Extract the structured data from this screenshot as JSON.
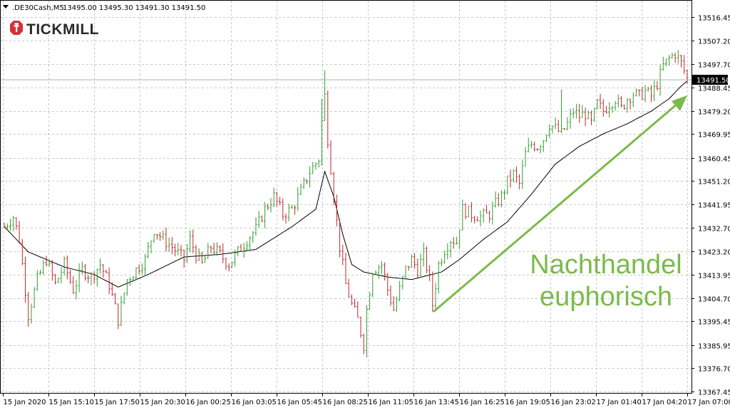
{
  "header": {
    "symbol": ".DE30Cash,M5",
    "ohlc": "13495.00 13495.30 13491.30 13491.50"
  },
  "logo": {
    "text": "TICKMILL"
  },
  "current_price": "13491.50",
  "annotation": {
    "line1": "Nachthandel",
    "line2": "euphorisch",
    "color": "#7cba4b"
  },
  "colors": {
    "bull": "#2f9e2f",
    "bear": "#c0282f",
    "ma": "#000000",
    "grid": "#c8c8c8"
  },
  "chart_data": {
    "type": "candlestick",
    "y_axis": {
      "ticks": [
        13516.45,
        13507.2,
        13497.7,
        13488.45,
        13479.2,
        13469.95,
        13460.45,
        13451.2,
        13441.95,
        13432.7,
        13423.2,
        13413.95,
        13404.7,
        13395.45,
        13385.95,
        13376.7,
        13367.45
      ],
      "tick_labels": [
        "13516.45",
        "13507.20",
        "13497.70",
        "13488.45",
        "13479.20",
        "13469.95",
        "13460.45",
        "13451.20",
        "13441.95",
        "13432.70",
        "13423.20",
        "13413.95",
        "13404.70",
        "13395.45",
        "13385.95",
        "13376.70",
        "13367.45"
      ],
      "range": [
        13365.5,
        13520.0
      ]
    },
    "x_axis": {
      "tick_labels": [
        "15 Jan 2020",
        "15 Jan 15:10",
        "15 Jan 17:50",
        "15 Jan 20:30",
        "16 Jan 00:25",
        "16 Jan 03:05",
        "16 Jan 05:45",
        "16 Jan 08:25",
        "16 Jan 11:05",
        "16 Jan 13:45",
        "16 Jan 16:25",
        "16 Jan 19:05",
        "16 Jan 23:02",
        "17 Jan 01:40",
        "17 Jan 04:20",
        "17 Jan 07:00"
      ]
    },
    "anchors": [
      [
        0,
        13433
      ],
      [
        3,
        13437
      ],
      [
        5,
        13428
      ],
      [
        8,
        13398
      ],
      [
        11,
        13412
      ],
      [
        14,
        13420
      ],
      [
        17,
        13410
      ],
      [
        20,
        13418
      ],
      [
        23,
        13408
      ],
      [
        26,
        13416
      ],
      [
        29,
        13413
      ],
      [
        32,
        13418
      ],
      [
        35,
        13410
      ],
      [
        38,
        13396
      ],
      [
        41,
        13412
      ],
      [
        44,
        13416
      ],
      [
        47,
        13420
      ],
      [
        50,
        13432
      ],
      [
        53,
        13428
      ],
      [
        56,
        13425
      ],
      [
        60,
        13420
      ],
      [
        62,
        13428
      ],
      [
        64,
        13422
      ],
      [
        66,
        13418
      ],
      [
        69,
        13425
      ],
      [
        72,
        13422
      ],
      [
        75,
        13418
      ],
      [
        78,
        13423
      ],
      [
        81,
        13428
      ],
      [
        84,
        13432
      ],
      [
        87,
        13440
      ],
      [
        90,
        13445
      ],
      [
        93,
        13438
      ],
      [
        96,
        13440
      ],
      [
        99,
        13447
      ],
      [
        102,
        13455
      ],
      [
        105,
        13460
      ],
      [
        106,
        13475
      ],
      [
        107,
        13485
      ],
      [
        108,
        13468
      ],
      [
        110,
        13445
      ],
      [
        112,
        13425
      ],
      [
        114,
        13410
      ],
      [
        116,
        13402
      ],
      [
        118,
        13396
      ],
      [
        120,
        13386
      ],
      [
        121,
        13400
      ],
      [
        123,
        13416
      ],
      [
        126,
        13418
      ],
      [
        128,
        13408
      ],
      [
        130,
        13400
      ],
      [
        132,
        13408
      ],
      [
        134,
        13416
      ],
      [
        136,
        13420
      ],
      [
        138,
        13416
      ],
      [
        140,
        13422
      ],
      [
        142,
        13412
      ],
      [
        143,
        13402
      ],
      [
        145,
        13418
      ],
      [
        147,
        13424
      ],
      [
        149,
        13428
      ],
      [
        151,
        13427
      ],
      [
        153,
        13440
      ],
      [
        156,
        13438
      ],
      [
        159,
        13437
      ],
      [
        162,
        13438
      ],
      [
        164,
        13442
      ],
      [
        166,
        13445
      ],
      [
        168,
        13451
      ],
      [
        170,
        13454
      ],
      [
        172,
        13450
      ],
      [
        174,
        13462
      ],
      [
        176,
        13466
      ],
      [
        178,
        13465
      ],
      [
        180,
        13468
      ],
      [
        182,
        13474
      ],
      [
        184,
        13472
      ],
      [
        186,
        13470
      ],
      [
        188,
        13474
      ],
      [
        190,
        13479
      ],
      [
        192,
        13477
      ],
      [
        194,
        13478
      ],
      [
        196,
        13474
      ],
      [
        198,
        13482
      ],
      [
        200,
        13479
      ],
      [
        202,
        13482
      ],
      [
        204,
        13484
      ],
      [
        206,
        13480
      ],
      [
        208,
        13484
      ],
      [
        210,
        13486
      ],
      [
        212,
        13485
      ],
      [
        214,
        13487
      ],
      [
        216,
        13485
      ],
      [
        218,
        13490
      ],
      [
        220,
        13497
      ],
      [
        222,
        13500
      ],
      [
        224,
        13502
      ],
      [
        226,
        13498
      ],
      [
        228,
        13492
      ]
    ],
    "ma_anchors": [
      [
        0,
        13433
      ],
      [
        8,
        13423
      ],
      [
        20,
        13417
      ],
      [
        30,
        13414
      ],
      [
        38,
        13409
      ],
      [
        48,
        13414
      ],
      [
        60,
        13421
      ],
      [
        72,
        13422
      ],
      [
        84,
        13424
      ],
      [
        96,
        13433
      ],
      [
        104,
        13440
      ],
      [
        107,
        13455
      ],
      [
        110,
        13445
      ],
      [
        113,
        13430
      ],
      [
        116,
        13418
      ],
      [
        120,
        13415
      ],
      [
        128,
        13413
      ],
      [
        136,
        13412
      ],
      [
        146,
        13415
      ],
      [
        152,
        13420
      ],
      [
        160,
        13428
      ],
      [
        168,
        13435
      ],
      [
        176,
        13446
      ],
      [
        184,
        13458
      ],
      [
        192,
        13465
      ],
      [
        200,
        13470
      ],
      [
        208,
        13474
      ],
      [
        216,
        13479
      ],
      [
        222,
        13484
      ],
      [
        226,
        13489
      ],
      [
        228,
        13491
      ]
    ]
  }
}
